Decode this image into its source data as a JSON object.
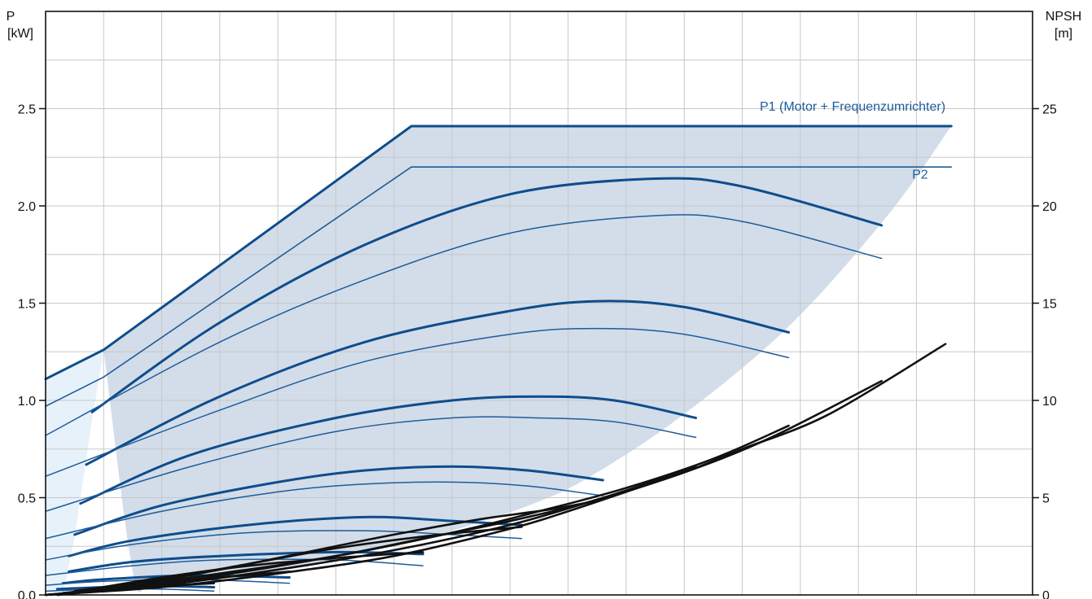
{
  "chart_data": {
    "type": "line",
    "left_axis": {
      "title_line1": "P",
      "title_line2": "[kW]",
      "ylim": [
        0,
        3.0
      ],
      "ticks": [
        "0.0",
        "0.5",
        "1.0",
        "1.5",
        "2.0",
        "2.5"
      ]
    },
    "right_axis": {
      "title_line1": "NPSH",
      "title_line2": "[m]",
      "ylim": [
        0,
        30
      ],
      "ticks": [
        "0",
        "5",
        "10",
        "15",
        "20",
        "25"
      ]
    },
    "x_axis": {
      "xlim": [
        0,
        17
      ],
      "gridlines": 17,
      "ticks": []
    },
    "grid": true,
    "colors": {
      "p1": "#0e4d8c",
      "p2": "#1f5c99",
      "npsh": "#111111",
      "area": "#d2dde9",
      "area_light": "#e6f1fa",
      "grid": "#c8c8c8"
    },
    "annotations": [
      {
        "text": "P1 (Motor + Frequenzumrichter)",
        "x": 15.5,
        "y": 2.49,
        "anchor": "end"
      },
      {
        "text": "P2",
        "x": 15.2,
        "y": 2.14,
        "anchor": "end"
      }
    ],
    "operating_area": {
      "upper": [
        [
          1.0,
          1.26
        ],
        [
          6.3,
          2.41
        ],
        [
          15.6,
          2.41
        ]
      ],
      "lower": [
        [
          15.6,
          2.41
        ],
        [
          14.5,
          1.95
        ],
        [
          12.8,
          1.38
        ],
        [
          11.0,
          0.93
        ],
        [
          9.5,
          0.63
        ],
        [
          8.5,
          0.48
        ],
        [
          7.0,
          0.33
        ],
        [
          5.5,
          0.22
        ],
        [
          4.0,
          0.13
        ],
        [
          2.5,
          0.08
        ],
        [
          1.8,
          0.06
        ],
        [
          1.5,
          0.12
        ],
        [
          1.0,
          1.26
        ]
      ]
    },
    "light_region": [
      [
        0,
        1.11
      ],
      [
        1.0,
        1.26
      ],
      [
        0.8,
        0.9
      ],
      [
        0.5,
        0.3
      ],
      [
        0.3,
        0.0
      ],
      [
        0,
        0.0
      ]
    ],
    "series": [
      {
        "name": "P1 (Motor + Frequenzumrichter)",
        "kind": "p1-max",
        "values": [
          [
            0,
            1.11
          ],
          [
            1.0,
            1.26
          ],
          [
            6.3,
            2.41
          ],
          [
            15.6,
            2.41
          ]
        ]
      },
      {
        "name": "P2",
        "kind": "p2-max",
        "values": [
          [
            0,
            0.97
          ],
          [
            1.0,
            1.12
          ],
          [
            6.3,
            2.2
          ],
          [
            15.6,
            2.2
          ]
        ]
      },
      {
        "kind": "p1",
        "values": [
          [
            0.8,
            0.94
          ],
          [
            3.0,
            1.4
          ],
          [
            5.5,
            1.8
          ],
          [
            8.0,
            2.06
          ],
          [
            10.5,
            2.14
          ],
          [
            12.0,
            2.1
          ],
          [
            14.4,
            1.9
          ]
        ]
      },
      {
        "kind": "p2",
        "values": [
          [
            0,
            0.82
          ],
          [
            3.0,
            1.3
          ],
          [
            5.5,
            1.62
          ],
          [
            8.0,
            1.86
          ],
          [
            10.5,
            1.95
          ],
          [
            12.0,
            1.92
          ],
          [
            14.4,
            1.73
          ]
        ]
      },
      {
        "kind": "p1",
        "values": [
          [
            0.7,
            0.67
          ],
          [
            3.0,
            1.02
          ],
          [
            5.5,
            1.3
          ],
          [
            8.0,
            1.46
          ],
          [
            9.5,
            1.51
          ],
          [
            11.0,
            1.48
          ],
          [
            12.8,
            1.35
          ]
        ]
      },
      {
        "kind": "p2",
        "values": [
          [
            0,
            0.61
          ],
          [
            3.0,
            0.95
          ],
          [
            5.5,
            1.2
          ],
          [
            8.0,
            1.34
          ],
          [
            9.5,
            1.37
          ],
          [
            11.0,
            1.34
          ],
          [
            12.8,
            1.22
          ]
        ]
      },
      {
        "kind": "p1",
        "values": [
          [
            0.6,
            0.47
          ],
          [
            2.5,
            0.72
          ],
          [
            5.0,
            0.91
          ],
          [
            7.0,
            1.0
          ],
          [
            8.5,
            1.02
          ],
          [
            9.8,
            1.0
          ],
          [
            11.2,
            0.91
          ]
        ]
      },
      {
        "kind": "p2",
        "values": [
          [
            0,
            0.43
          ],
          [
            2.5,
            0.66
          ],
          [
            5.0,
            0.84
          ],
          [
            7.0,
            0.91
          ],
          [
            8.5,
            0.91
          ],
          [
            9.8,
            0.89
          ],
          [
            11.2,
            0.81
          ]
        ]
      },
      {
        "kind": "p1",
        "values": [
          [
            0.5,
            0.31
          ],
          [
            2.0,
            0.46
          ],
          [
            4.0,
            0.58
          ],
          [
            5.5,
            0.64
          ],
          [
            7.0,
            0.66
          ],
          [
            8.3,
            0.64
          ],
          [
            9.6,
            0.59
          ]
        ]
      },
      {
        "kind": "p2",
        "values": [
          [
            0,
            0.29
          ],
          [
            2.0,
            0.43
          ],
          [
            4.0,
            0.53
          ],
          [
            5.5,
            0.57
          ],
          [
            7.0,
            0.58
          ],
          [
            8.3,
            0.56
          ],
          [
            9.6,
            0.51
          ]
        ]
      },
      {
        "kind": "p1",
        "values": [
          [
            0.4,
            0.2
          ],
          [
            1.5,
            0.28
          ],
          [
            3.5,
            0.36
          ],
          [
            5.5,
            0.4
          ],
          [
            7.0,
            0.38
          ],
          [
            8.2,
            0.36
          ]
        ]
      },
      {
        "kind": "p2",
        "values": [
          [
            0,
            0.18
          ],
          [
            1.5,
            0.26
          ],
          [
            3.5,
            0.32
          ],
          [
            5.5,
            0.33
          ],
          [
            7.0,
            0.31
          ],
          [
            8.2,
            0.29
          ]
        ]
      },
      {
        "kind": "p1",
        "values": [
          [
            0.4,
            0.12
          ],
          [
            1.5,
            0.17
          ],
          [
            3.0,
            0.2
          ],
          [
            5.0,
            0.22
          ],
          [
            6.5,
            0.21
          ]
        ]
      },
      {
        "kind": "p2",
        "values": [
          [
            0,
            0.1
          ],
          [
            1.5,
            0.15
          ],
          [
            3.0,
            0.18
          ],
          [
            5.0,
            0.18
          ],
          [
            6.5,
            0.15
          ]
        ]
      },
      {
        "kind": "p1",
        "values": [
          [
            0.3,
            0.06
          ],
          [
            1.0,
            0.08
          ],
          [
            2.5,
            0.1
          ],
          [
            4.2,
            0.09
          ]
        ]
      },
      {
        "kind": "p2",
        "values": [
          [
            0,
            0.05
          ],
          [
            1.0,
            0.07
          ],
          [
            2.5,
            0.08
          ],
          [
            4.2,
            0.06
          ]
        ]
      },
      {
        "kind": "p1",
        "values": [
          [
            0.2,
            0.03
          ],
          [
            1.0,
            0.04
          ],
          [
            2.0,
            0.045
          ],
          [
            2.9,
            0.04
          ]
        ]
      },
      {
        "kind": "p2",
        "values": [
          [
            0,
            0.02
          ],
          [
            1.0,
            0.03
          ],
          [
            2.0,
            0.03
          ],
          [
            2.9,
            0.02
          ]
        ]
      },
      {
        "kind": "npsh",
        "values": [
          [
            0,
            0.0
          ],
          [
            2.0,
            0.4
          ],
          [
            4.0,
            1.1
          ],
          [
            6.0,
            2.0
          ],
          [
            8.0,
            3.4
          ],
          [
            9.0,
            4.3
          ],
          [
            10.0,
            5.3
          ],
          [
            11.0,
            6.3
          ],
          [
            12.0,
            7.5
          ],
          [
            13.5,
            9.3
          ],
          [
            15.5,
            12.9
          ]
        ]
      },
      {
        "kind": "npsh",
        "values": [
          [
            0,
            0.0
          ],
          [
            2.0,
            0.5
          ],
          [
            4.0,
            1.3
          ],
          [
            6.0,
            2.3
          ],
          [
            8.0,
            3.6
          ],
          [
            9.5,
            4.9
          ],
          [
            11.0,
            6.3
          ],
          [
            12.5,
            8.1
          ],
          [
            14.4,
            11.0
          ]
        ]
      },
      {
        "kind": "npsh",
        "values": [
          [
            0,
            0.0
          ],
          [
            1.0,
            0.3
          ],
          [
            3.0,
            1.1
          ],
          [
            5.0,
            2.0
          ],
          [
            7.0,
            3.2
          ],
          [
            8.5,
            4.3
          ],
          [
            10.0,
            5.5
          ],
          [
            11.5,
            7.0
          ],
          [
            12.8,
            8.7
          ]
        ]
      },
      {
        "kind": "npsh",
        "values": [
          [
            0.2,
            0.0
          ],
          [
            1.5,
            0.4
          ],
          [
            3.0,
            1.0
          ],
          [
            5.0,
            2.0
          ],
          [
            6.5,
            2.9
          ],
          [
            8.0,
            3.8
          ],
          [
            9.5,
            4.9
          ],
          [
            11.2,
            6.6
          ]
        ]
      },
      {
        "kind": "npsh",
        "values": [
          [
            0.3,
            0.1
          ],
          [
            1.5,
            0.5
          ],
          [
            3.0,
            1.3
          ],
          [
            4.5,
            2.2
          ],
          [
            6.0,
            3.1
          ],
          [
            7.5,
            3.9
          ],
          [
            8.7,
            4.4
          ],
          [
            9.6,
            4.9
          ]
        ]
      },
      {
        "kind": "npsh",
        "values": [
          [
            0.5,
            0.2
          ],
          [
            2.0,
            0.8
          ],
          [
            3.5,
            1.6
          ],
          [
            5.0,
            2.4
          ],
          [
            6.5,
            3.0
          ],
          [
            8.2,
            3.5
          ]
        ]
      },
      {
        "kind": "npsh",
        "values": [
          [
            0.6,
            0.2
          ],
          [
            2.0,
            0.9
          ],
          [
            3.5,
            1.5
          ],
          [
            5.0,
            1.9
          ],
          [
            6.5,
            2.2
          ]
        ]
      },
      {
        "kind": "npsh",
        "values": [
          [
            0.7,
            0.3
          ],
          [
            1.8,
            0.6
          ],
          [
            3.0,
            0.9
          ],
          [
            4.2,
            1.2
          ]
        ]
      },
      {
        "kind": "npsh",
        "values": [
          [
            0.6,
            0.2
          ],
          [
            1.5,
            0.4
          ],
          [
            2.9,
            0.6
          ]
        ]
      }
    ]
  }
}
